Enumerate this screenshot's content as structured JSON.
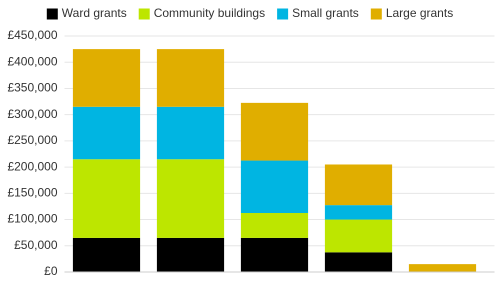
{
  "chart_data": {
    "type": "stacked_bar",
    "categories": [
      null,
      null,
      null,
      null,
      null
    ],
    "series": [
      {
        "name": "Ward grants",
        "color": "#000000",
        "values": [
          65000,
          65000,
          65000,
          37500,
          0
        ]
      },
      {
        "name": "Community buildings",
        "color": "#bde600",
        "values": [
          150000,
          150000,
          47500,
          62500,
          0
        ]
      },
      {
        "name": "Small grants",
        "color": "#00b5e2",
        "values": [
          100000,
          100000,
          100000,
          27500,
          0
        ]
      },
      {
        "name": "Large grants",
        "color": "#e0ae00",
        "values": [
          110000,
          110000,
          110000,
          77500,
          15000
        ]
      }
    ],
    "ylim": [
      0,
      450000
    ],
    "yticks": [
      {
        "value": 0,
        "label": "£0"
      },
      {
        "value": 50000,
        "label": "£50,000"
      },
      {
        "value": 100000,
        "label": "£100,000"
      },
      {
        "value": 150000,
        "label": "£150,000"
      },
      {
        "value": 200000,
        "label": "£200,000"
      },
      {
        "value": 250000,
        "label": "£250,000"
      },
      {
        "value": 300000,
        "label": "£300,000"
      },
      {
        "value": 350000,
        "label": "£350,000"
      },
      {
        "value": 400000,
        "label": "£400,000"
      },
      {
        "value": 450000,
        "label": "£450,000"
      }
    ],
    "grid": true,
    "legend": "top"
  }
}
